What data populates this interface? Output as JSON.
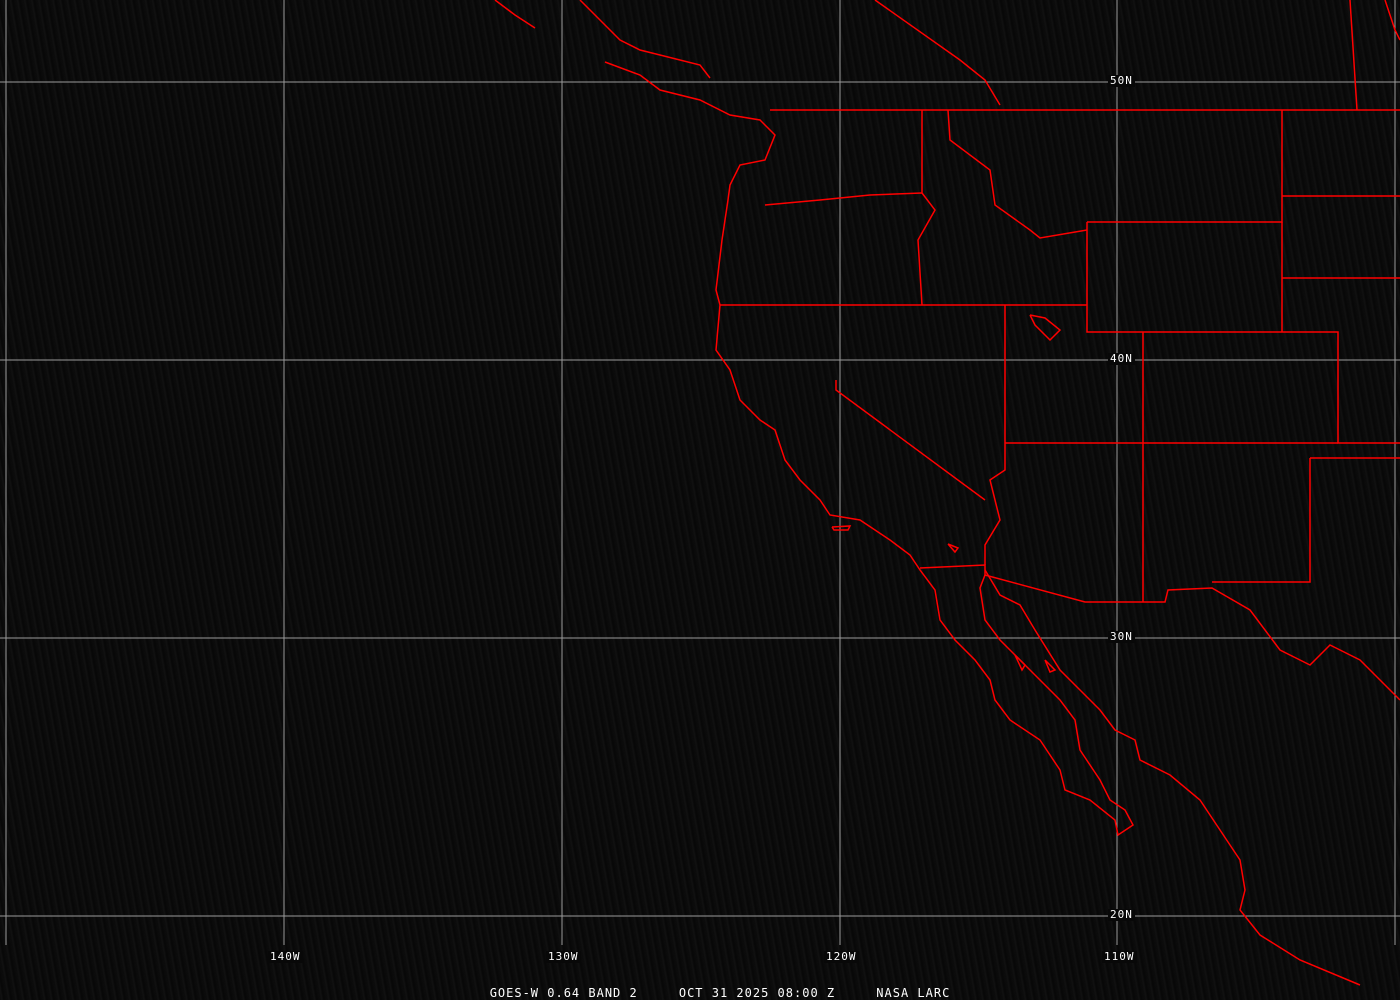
{
  "title": "GOES-W 0.64 BAND 2",
  "datetime": "OCT 31 2025 08:00 Z",
  "credit": "NASA LARC",
  "latitude_labels": [
    "50N",
    "40N",
    "30N",
    "20N"
  ],
  "longitude_labels": [
    "140W",
    "130W",
    "120W",
    "110W"
  ],
  "colors": {
    "borders": "#ff0000",
    "grid": "#9a9a9a",
    "background": "#0a0a0a"
  }
}
